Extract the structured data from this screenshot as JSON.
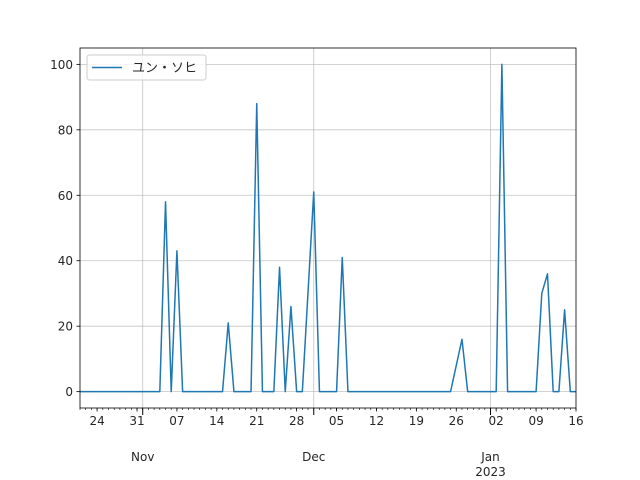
{
  "chart_data": {
    "type": "line",
    "title": "",
    "xlabel": "",
    "ylabel": "",
    "x_start": "2022-10-21",
    "x_end": "2023-01-16",
    "ylim": [
      -5,
      105
    ],
    "y_ticks": [
      0,
      20,
      40,
      60,
      80,
      100
    ],
    "grid": true,
    "legend_position": "top-left",
    "x_ticks": [
      {
        "date": "2022-10-24",
        "label": "24"
      },
      {
        "date": "2022-10-31",
        "label": "31"
      },
      {
        "date": "2022-11-07",
        "label": "07"
      },
      {
        "date": "2022-11-14",
        "label": "14"
      },
      {
        "date": "2022-11-21",
        "label": "21"
      },
      {
        "date": "2022-11-28",
        "label": "28"
      },
      {
        "date": "2022-12-05",
        "label": "05"
      },
      {
        "date": "2022-12-12",
        "label": "12"
      },
      {
        "date": "2022-12-19",
        "label": "19"
      },
      {
        "date": "2022-12-26",
        "label": "26"
      },
      {
        "date": "2023-01-02",
        "label": "02"
      },
      {
        "date": "2023-01-09",
        "label": "09"
      },
      {
        "date": "2023-01-16",
        "label": "16"
      }
    ],
    "month_labels": [
      {
        "date": "2022-11-01",
        "label": "Nov"
      },
      {
        "date": "2022-12-01",
        "label": "Dec"
      },
      {
        "date": "2023-01-01",
        "label": "Jan",
        "sub": "2023"
      }
    ],
    "series": [
      {
        "name": "ユン・ソヒ",
        "color": "#1f77b4",
        "points": [
          [
            "2022-10-21",
            0
          ],
          [
            "2022-11-04",
            0
          ],
          [
            "2022-11-05",
            58
          ],
          [
            "2022-11-06",
            0
          ],
          [
            "2022-11-07",
            43
          ],
          [
            "2022-11-08",
            0
          ],
          [
            "2022-11-15",
            0
          ],
          [
            "2022-11-16",
            21
          ],
          [
            "2022-11-17",
            0
          ],
          [
            "2022-11-20",
            0
          ],
          [
            "2022-11-21",
            88
          ],
          [
            "2022-11-22",
            0
          ],
          [
            "2022-11-24",
            0
          ],
          [
            "2022-11-25",
            38
          ],
          [
            "2022-11-26",
            0
          ],
          [
            "2022-11-27",
            26
          ],
          [
            "2022-11-28",
            0
          ],
          [
            "2022-11-29",
            0
          ],
          [
            "2022-12-01",
            61
          ],
          [
            "2022-12-02",
            0
          ],
          [
            "2022-12-05",
            0
          ],
          [
            "2022-12-06",
            41
          ],
          [
            "2022-12-07",
            0
          ],
          [
            "2022-12-25",
            0
          ],
          [
            "2022-12-27",
            16
          ],
          [
            "2022-12-28",
            0
          ],
          [
            "2023-01-02",
            0
          ],
          [
            "2023-01-03",
            100
          ],
          [
            "2023-01-04",
            0
          ],
          [
            "2023-01-09",
            0
          ],
          [
            "2023-01-10",
            30
          ],
          [
            "2023-01-11",
            36
          ],
          [
            "2023-01-12",
            0
          ],
          [
            "2023-01-13",
            0
          ],
          [
            "2023-01-14",
            25
          ],
          [
            "2023-01-15",
            0
          ],
          [
            "2023-01-16",
            0
          ]
        ]
      }
    ]
  }
}
